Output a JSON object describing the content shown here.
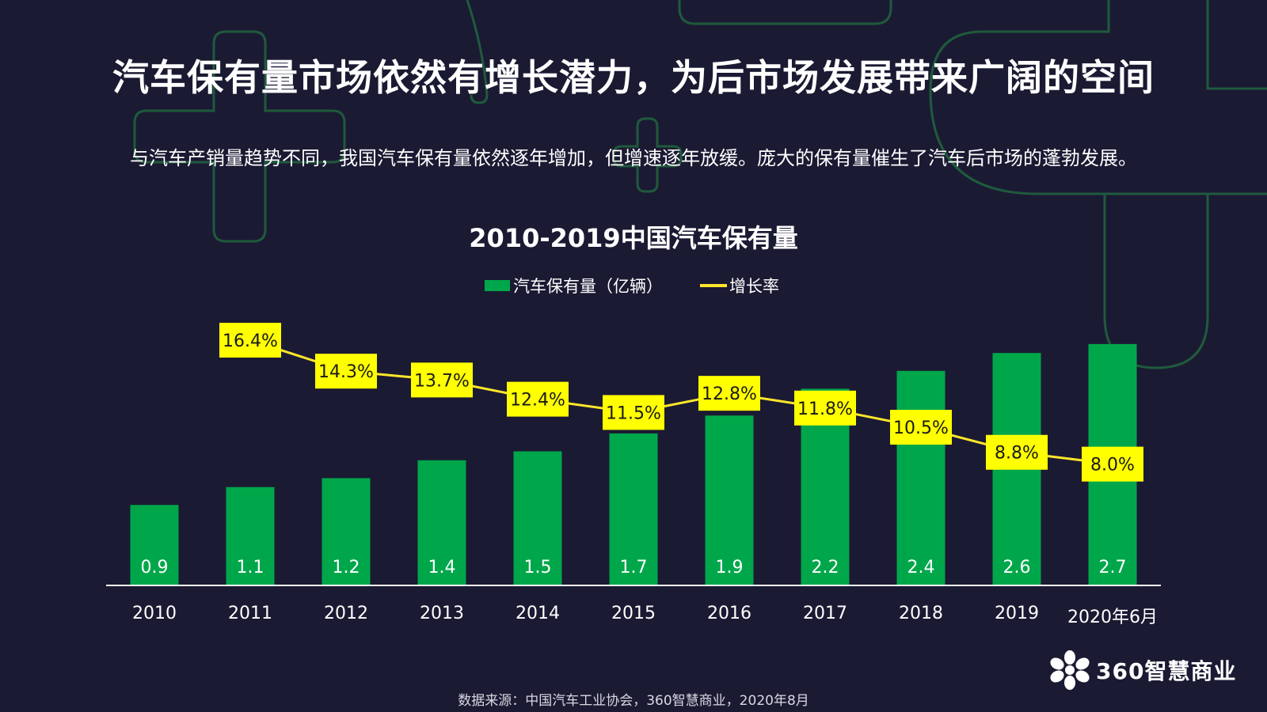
{
  "header": {
    "title": "汽车保有量市场依然有增长潜力，为后市场发展带来广阔的空间",
    "subtitle": "与汽车产销量趋势不同，我国汽车保有量依然逐年增加，但增速逐年放缓。庞大的保有量催生了汽车后市场的蓬勃发展。"
  },
  "colors": {
    "background": "#1b1a33",
    "bar": "#00a74a",
    "line": "#ffe72b",
    "label_box": "#ffff00",
    "decor_stroke": "#1f5a3c"
  },
  "chart_data": {
    "type": "bar",
    "title": "2010-2019中国汽车保有量",
    "categories": [
      "2010",
      "2011",
      "2012",
      "2013",
      "2014",
      "2015",
      "2016",
      "2017",
      "2018",
      "2019",
      "2020年6月"
    ],
    "series": [
      {
        "name": "汽车保有量（亿辆）",
        "type": "bar",
        "values": [
          0.9,
          1.1,
          1.2,
          1.4,
          1.5,
          1.7,
          1.9,
          2.2,
          2.4,
          2.6,
          2.7
        ],
        "labels": [
          "0.9",
          "1.1",
          "1.2",
          "1.4",
          "1.5",
          "1.7",
          "1.9",
          "2.2",
          "2.4",
          "2.6",
          "2.7"
        ]
      },
      {
        "name": "增长率",
        "type": "line",
        "values": [
          null,
          16.4,
          14.3,
          13.7,
          12.4,
          11.5,
          12.8,
          11.8,
          10.5,
          8.8,
          8.0
        ],
        "labels": [
          "",
          "16.4%",
          "14.3%",
          "13.7%",
          "12.4%",
          "11.5%",
          "12.8%",
          "11.8%",
          "10.5%",
          "8.8%",
          "8.0%"
        ]
      }
    ],
    "legend_position": "top-center",
    "grid": false,
    "xlabel": "",
    "ylabel": ""
  },
  "footer": {
    "source": "数据来源：中国汽车工业协会，360智慧商业，2020年8月",
    "brand": "360智慧商业"
  }
}
